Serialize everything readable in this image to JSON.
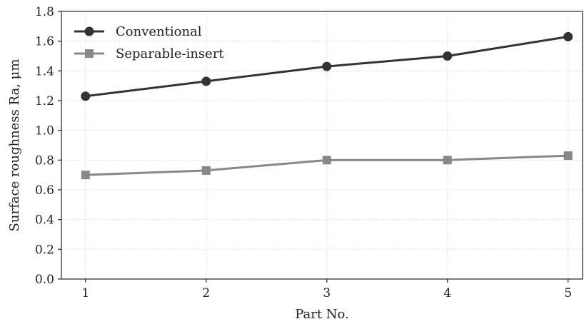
{
  "chart_data": {
    "type": "line",
    "x": [
      1,
      2,
      3,
      4,
      5
    ],
    "x_tick_labels": [
      "1",
      "2",
      "3",
      "4",
      "5"
    ],
    "xlim": [
      0.8,
      5.12
    ],
    "ylim": [
      0.0,
      1.8
    ],
    "y_ticks": [
      0.0,
      0.2,
      0.4,
      0.6,
      0.8,
      1.0,
      1.2,
      1.4,
      1.6,
      1.8
    ],
    "y_tick_labels": [
      "0.0",
      "0.2",
      "0.4",
      "0.6",
      "0.8",
      "1.0",
      "1.2",
      "1.4",
      "1.6",
      "1.8"
    ],
    "xlabel": "Part No.",
    "ylabel": "Surface roughness Ra, μm",
    "grid": true,
    "legend_position": "top-left",
    "series": [
      {
        "name": "Conventional",
        "values": [
          1.23,
          1.33,
          1.43,
          1.5,
          1.63
        ],
        "color": "#333333",
        "marker": "circle"
      },
      {
        "name": "Separable-insert",
        "values": [
          0.7,
          0.73,
          0.8,
          0.8,
          0.83
        ],
        "color": "#888888",
        "marker": "square"
      }
    ]
  }
}
